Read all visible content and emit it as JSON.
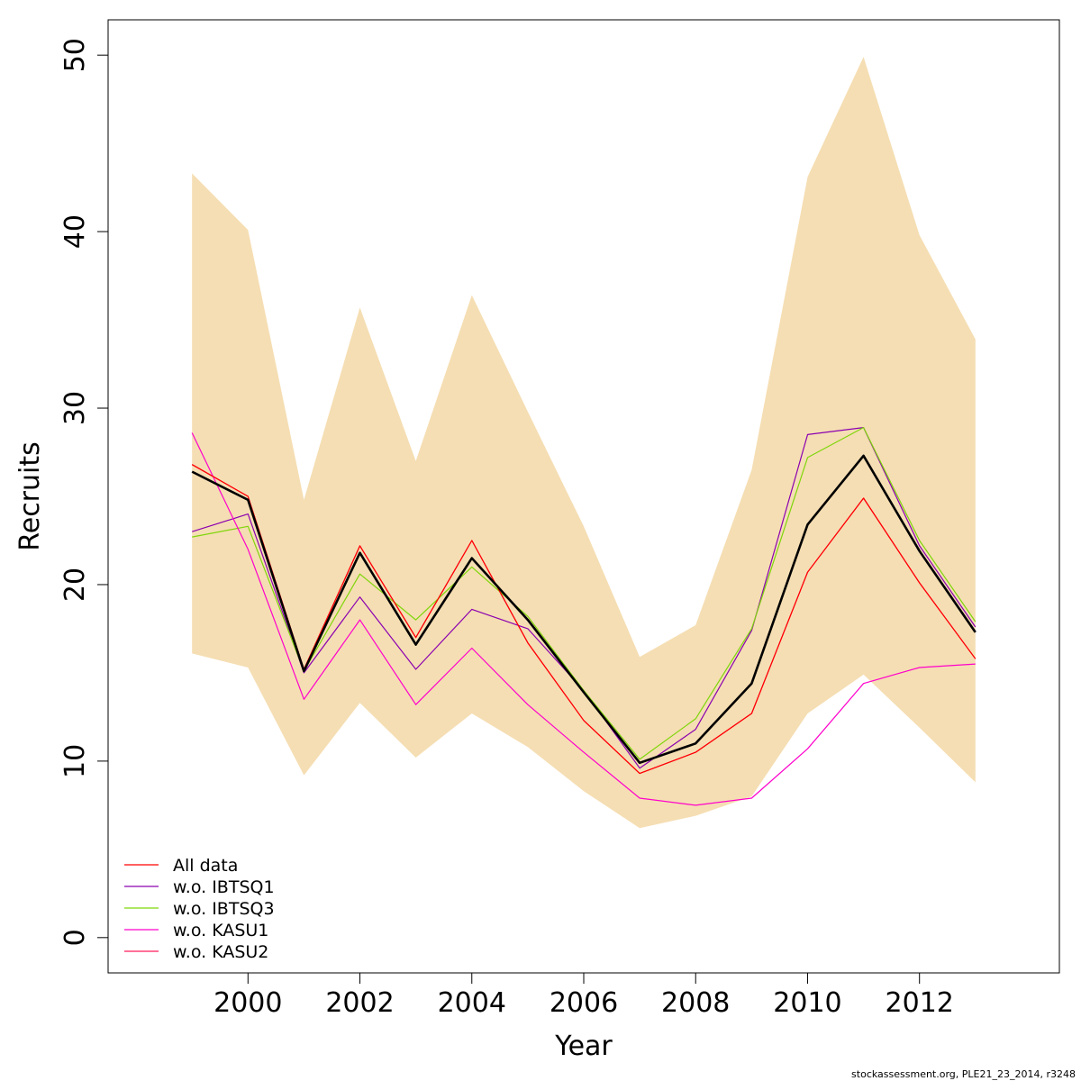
{
  "chart_data": {
    "type": "line",
    "title": "",
    "xlabel": "Year",
    "ylabel": "Recruits",
    "x": [
      1999,
      2000,
      2001,
      2002,
      2003,
      2004,
      2005,
      2006,
      2007,
      2008,
      2009,
      2010,
      2011,
      2012,
      2013
    ],
    "xlim": [
      1997.5,
      2014.5
    ],
    "ylim": [
      -2,
      52
    ],
    "xticks": [
      "2000",
      "2002",
      "2004",
      "2006",
      "2008",
      "2010",
      "2012"
    ],
    "xtick_values": [
      2000,
      2002,
      2004,
      2006,
      2008,
      2010,
      2012
    ],
    "yticks": [
      "0",
      "10",
      "20",
      "30",
      "40",
      "50"
    ],
    "ytick_values": [
      0,
      10,
      20,
      30,
      40,
      50
    ],
    "band": {
      "name": "confidence interval",
      "color": "#F5DEB3",
      "upper": [
        43.3,
        40.1,
        24.8,
        35.7,
        27.0,
        36.4,
        29.8,
        23.3,
        15.9,
        17.7,
        26.5,
        43.1,
        49.9,
        39.8,
        33.9
      ],
      "lower": [
        16.1,
        15.3,
        9.2,
        13.3,
        10.2,
        12.7,
        10.8,
        8.3,
        6.2,
        6.9,
        8.0,
        12.7,
        14.9,
        11.9,
        8.8
      ]
    },
    "estimate": {
      "name": "estimate",
      "color": "#000000",
      "values": [
        26.4,
        24.8,
        15.1,
        21.8,
        16.6,
        21.5,
        18.0,
        13.9,
        9.9,
        11.0,
        14.4,
        23.4,
        27.3,
        21.9,
        17.3
      ]
    },
    "series": [
      {
        "name": "All data",
        "color": "#FF0000",
        "values": [
          26.8,
          25.0,
          15.2,
          22.2,
          17.0,
          22.5,
          16.7,
          12.3,
          9.3,
          10.5,
          12.7,
          20.7,
          24.9,
          20.1,
          15.8
        ]
      },
      {
        "name": "w.o. IBTSQ1",
        "color": "#8B00B0",
        "values": [
          23.0,
          24.0,
          15.0,
          19.3,
          15.2,
          18.6,
          17.5,
          14.0,
          9.6,
          11.8,
          17.4,
          28.5,
          28.9,
          22.2,
          17.6
        ]
      },
      {
        "name": "w.o. IBTSQ3",
        "color": "#7FD60A",
        "values": [
          22.7,
          23.3,
          15.1,
          20.6,
          18.0,
          21.0,
          18.2,
          14.0,
          10.1,
          12.4,
          17.5,
          27.2,
          28.9,
          22.5,
          17.9
        ]
      },
      {
        "name": "w.o. KASU1",
        "color": "#FF00CC",
        "values": [
          28.6,
          22.0,
          13.5,
          18.0,
          13.2,
          16.4,
          13.2,
          10.5,
          7.9,
          7.5,
          7.9,
          10.7,
          14.4,
          15.3,
          15.5
        ]
      },
      {
        "name": "w.o. KASU2",
        "color": "#FF1A5A",
        "values": [
          26.8,
          25.0,
          15.2,
          22.2,
          17.0,
          22.5,
          16.7,
          12.3,
          9.3,
          10.5,
          12.7,
          20.7,
          24.9,
          20.1,
          15.8
        ]
      }
    ],
    "legend": {
      "position": "bottom-left",
      "entries": [
        "All data",
        "w.o. IBTSQ1",
        "w.o. IBTSQ3",
        "w.o. KASU1",
        "w.o. KASU2"
      ]
    },
    "grid": false
  },
  "footer": {
    "credit": "stockassessment.org, PLE21_23_2014, r3248"
  }
}
